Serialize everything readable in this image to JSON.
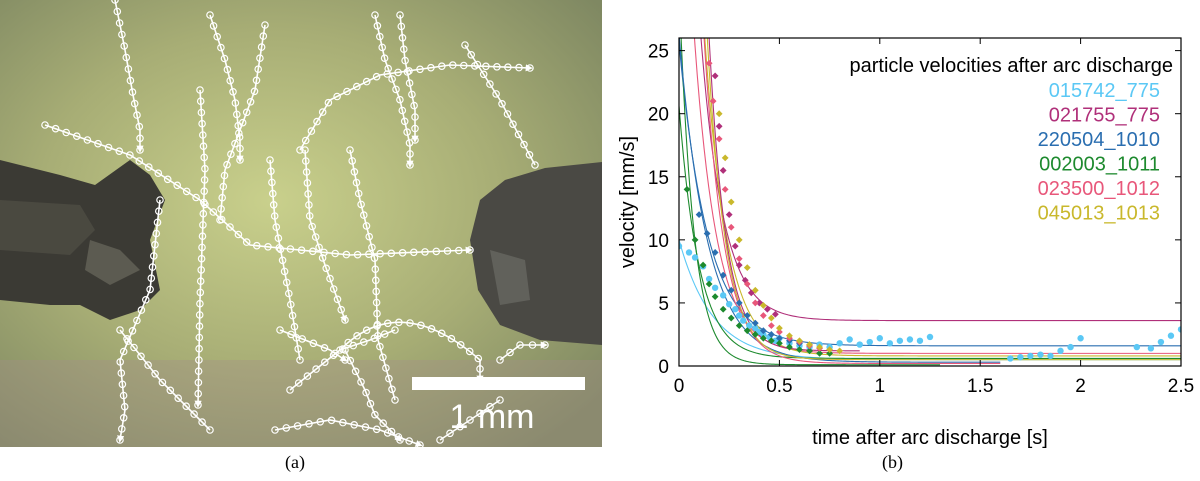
{
  "panels": {
    "a": {
      "caption": "(a)",
      "scale_bar_label": "1 mm"
    },
    "b": {
      "caption": "(b)"
    }
  },
  "chart_data": {
    "type": "scatter",
    "title": "",
    "xlabel": "time after arc discharge [s]",
    "ylabel": "velocity [mm/s]",
    "xlim": [
      0,
      2.5
    ],
    "ylim": [
      0,
      26
    ],
    "xticks": [
      0,
      0.5,
      1,
      1.5,
      2,
      2.5
    ],
    "yticks": [
      0,
      5,
      10,
      15,
      20,
      25
    ],
    "grid": false,
    "legend": {
      "title": "particle velocities after arc discharge",
      "placement": "top-right"
    },
    "series": [
      {
        "name": "015742_775",
        "color": "#5bc8f5",
        "marker": "circle",
        "fit": {
          "A": 9.5,
          "k": 6,
          "c": 0.5,
          "t_end": 2.5
        },
        "points": [
          [
            0.0,
            9.5
          ],
          [
            0.05,
            9.0
          ],
          [
            0.08,
            8.6
          ],
          [
            0.12,
            7.9
          ],
          [
            0.15,
            6.9
          ],
          [
            0.18,
            6.2
          ],
          [
            0.22,
            5.6
          ],
          [
            0.25,
            4.9
          ],
          [
            0.28,
            4.5
          ],
          [
            0.3,
            4.0
          ],
          [
            0.32,
            3.6
          ],
          [
            0.35,
            3.2
          ],
          [
            0.38,
            3.0
          ],
          [
            0.4,
            2.7
          ],
          [
            0.42,
            2.5
          ],
          [
            0.45,
            2.3
          ],
          [
            0.48,
            2.0
          ],
          [
            0.5,
            2.2
          ],
          [
            0.55,
            1.8
          ],
          [
            0.6,
            1.6
          ],
          [
            0.65,
            1.5
          ],
          [
            0.7,
            1.7
          ],
          [
            0.75,
            1.5
          ],
          [
            0.8,
            1.8
          ],
          [
            0.85,
            2.1
          ],
          [
            0.9,
            1.7
          ],
          [
            0.95,
            1.9
          ],
          [
            1.0,
            2.2
          ],
          [
            1.05,
            1.8
          ],
          [
            1.1,
            2.0
          ],
          [
            1.15,
            2.1
          ],
          [
            1.2,
            2.0
          ],
          [
            1.25,
            2.3
          ],
          [
            1.65,
            0.6
          ],
          [
            1.7,
            0.7
          ],
          [
            1.75,
            0.8
          ],
          [
            1.8,
            0.9
          ],
          [
            1.85,
            0.8
          ],
          [
            1.9,
            1.2
          ],
          [
            1.95,
            1.5
          ],
          [
            2.0,
            2.2
          ],
          [
            2.28,
            1.5
          ],
          [
            2.35,
            1.4
          ],
          [
            2.4,
            1.9
          ],
          [
            2.45,
            2.4
          ],
          [
            2.5,
            2.9
          ]
        ]
      },
      {
        "name": "021755_775",
        "color": "#b0307a",
        "marker": "diamond",
        "fit": {
          "A": 60,
          "k": 9,
          "c": 3.6,
          "t_end": 2.5
        },
        "points": [
          [
            0.18,
            23.0
          ],
          [
            0.2,
            19.0
          ],
          [
            0.22,
            15.5
          ],
          [
            0.25,
            12.0
          ],
          [
            0.28,
            9.5
          ],
          [
            0.3,
            8.0
          ],
          [
            0.33,
            6.8
          ],
          [
            0.36,
            5.8
          ],
          [
            0.4,
            5.0
          ],
          [
            0.44,
            4.5
          ],
          [
            0.48,
            4.1
          ]
        ]
      },
      {
        "name": "220504_1010",
        "color": "#2a6eb0",
        "marker": "diamond",
        "fit": {
          "A": 24,
          "k": 7,
          "c": 1.6,
          "t_end": 2.5
        },
        "points": [
          [
            0.1,
            12.0
          ],
          [
            0.14,
            10.5
          ],
          [
            0.18,
            9.0
          ],
          [
            0.22,
            7.2
          ],
          [
            0.26,
            6.0
          ],
          [
            0.3,
            5.0
          ],
          [
            0.34,
            4.0
          ],
          [
            0.38,
            3.4
          ],
          [
            0.42,
            2.8
          ],
          [
            0.46,
            2.5
          ],
          [
            0.5,
            2.2
          ],
          [
            0.55,
            2.0
          ],
          [
            0.6,
            1.8
          ]
        ]
      },
      {
        "name": "002003_1011",
        "color": "#1d8a2e",
        "marker": "diamond",
        "fit": {
          "A": 20,
          "k": 10,
          "c": 0.6,
          "t_end": 2.5
        },
        "points": [
          [
            0.04,
            14.0
          ],
          [
            0.08,
            10.0
          ],
          [
            0.12,
            8.0
          ],
          [
            0.15,
            6.5
          ],
          [
            0.18,
            5.5
          ],
          [
            0.22,
            4.5
          ],
          [
            0.26,
            3.8
          ],
          [
            0.3,
            3.2
          ],
          [
            0.34,
            2.8
          ],
          [
            0.38,
            2.5
          ],
          [
            0.42,
            2.2
          ],
          [
            0.46,
            2.0
          ],
          [
            0.5,
            1.8
          ],
          [
            0.55,
            1.5
          ],
          [
            0.6,
            1.3
          ],
          [
            0.65,
            1.2
          ],
          [
            0.7,
            1.0
          ],
          [
            0.75,
            1.0
          ]
        ]
      },
      {
        "name": "023500_1012",
        "color": "#e8577a",
        "marker": "diamond",
        "fit": {
          "A": 50,
          "k": 9,
          "c": 1.0,
          "t_end": 2.5
        },
        "points": [
          [
            0.15,
            24.0
          ],
          [
            0.17,
            21.0
          ],
          [
            0.2,
            18.0
          ],
          [
            0.23,
            14.0
          ],
          [
            0.26,
            11.0
          ],
          [
            0.3,
            8.5
          ],
          [
            0.34,
            6.5
          ],
          [
            0.38,
            5.0
          ],
          [
            0.42,
            4.0
          ],
          [
            0.46,
            3.2
          ],
          [
            0.5,
            2.7
          ],
          [
            0.55,
            2.2
          ],
          [
            0.6,
            1.9
          ],
          [
            0.65,
            1.6
          ],
          [
            0.7,
            1.4
          ]
        ]
      },
      {
        "name": "045013_1013",
        "color": "#c9b82c",
        "marker": "diamond",
        "fit": {
          "A": 80,
          "k": 9,
          "c": 0.8,
          "t_end": 2.5
        },
        "points": [
          [
            0.2,
            20.0
          ],
          [
            0.23,
            16.5
          ],
          [
            0.26,
            13.0
          ],
          [
            0.3,
            10.0
          ],
          [
            0.34,
            7.8
          ],
          [
            0.38,
            6.0
          ],
          [
            0.42,
            4.8
          ],
          [
            0.46,
            3.8
          ],
          [
            0.5,
            3.0
          ],
          [
            0.55,
            2.4
          ],
          [
            0.6,
            2.0
          ],
          [
            0.65,
            1.7
          ],
          [
            0.7,
            1.5
          ],
          [
            0.75,
            1.3
          ],
          [
            0.8,
            1.2
          ]
        ]
      }
    ],
    "extra_fits": [
      {
        "color": "#1d8a2e",
        "A": 30,
        "k": 14,
        "c": 0.1,
        "t_end": 1.3
      },
      {
        "color": "#2a6eb0",
        "A": 26,
        "k": 7,
        "c": 0.3,
        "t_end": 1.6
      },
      {
        "color": "#c9b82c",
        "A": 120,
        "k": 11,
        "c": 0.5,
        "t_end": 2.5
      },
      {
        "color": "#e8577a",
        "A": 90,
        "k": 10,
        "c": 0.2,
        "t_end": 1.6
      },
      {
        "color": "#b0307a",
        "A": 150,
        "k": 12,
        "c": 1.2,
        "t_end": 0.9
      }
    ]
  }
}
